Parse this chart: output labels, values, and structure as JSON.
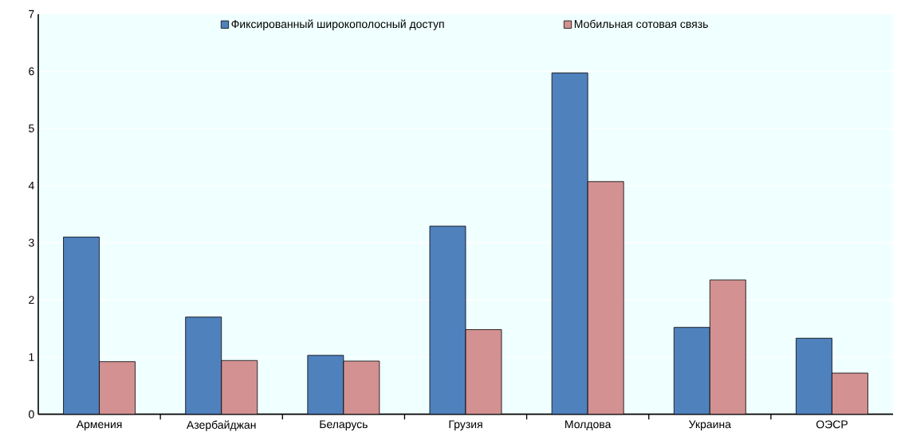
{
  "chart_data": {
    "type": "bar",
    "categories": [
      "Армения",
      "Азербайджан",
      "Беларусь",
      "Грузия",
      "Молдова",
      "Украина",
      "ОЭСР"
    ],
    "series": [
      {
        "name": "Фиксированный широкополосный доступ",
        "color": "#4f81bd",
        "values": [
          3.1,
          1.7,
          1.03,
          3.29,
          5.97,
          1.52,
          1.33
        ]
      },
      {
        "name": "Мобильная сотовая связь",
        "color": "#d39191",
        "values": [
          0.92,
          0.94,
          0.93,
          1.48,
          4.07,
          2.35,
          0.72
        ]
      }
    ],
    "ylim": [
      0,
      7
    ],
    "yticks": [
      0,
      1,
      2,
      3,
      4,
      5,
      6,
      7
    ],
    "grid": "y",
    "legend": "top"
  }
}
